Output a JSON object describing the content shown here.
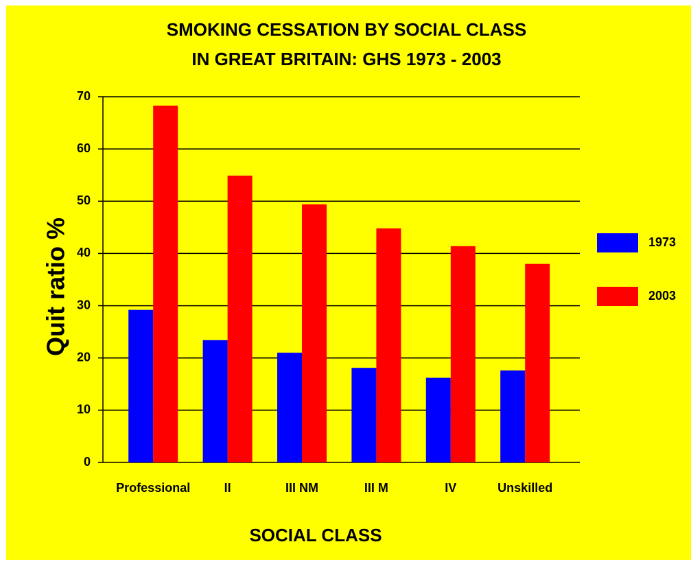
{
  "chart_data": {
    "type": "bar",
    "title": [
      "SMOKING CESSATION BY SOCIAL CLASS",
      "IN GREAT BRITAIN:  GHS 1973 - 2003"
    ],
    "x_label": "SOCIAL CLASS",
    "y_label": "Quit ratio %",
    "categories": [
      "Professional",
      "II",
      "III NM",
      "III M",
      "IV",
      "Unskilled"
    ],
    "series": [
      {
        "name": "1973",
        "color": "#0000ff",
        "values": [
          29.2,
          23.4,
          21.0,
          18.1,
          16.2,
          17.6
        ]
      },
      {
        "name": "2003",
        "color": "#ff0000",
        "values": [
          68.3,
          54.9,
          49.4,
          44.8,
          41.4,
          38.0
        ]
      }
    ],
    "ylim": [
      0,
      70
    ],
    "yticks": [
      0,
      10,
      20,
      30,
      40,
      50,
      60,
      70
    ],
    "grid": true,
    "legend": "right",
    "background": "#ffff00"
  }
}
